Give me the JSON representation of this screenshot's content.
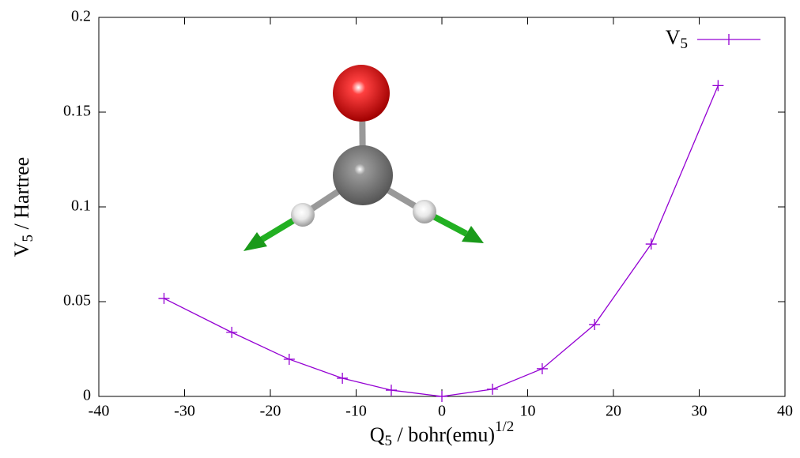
{
  "chart_data": {
    "type": "line",
    "xlabel": {
      "text": "Q",
      "sub": "5",
      "suffix": " / bohr(emu)",
      "sup": "1/2"
    },
    "ylabel": {
      "text": "V",
      "sub": "5",
      "suffix": " / Hartree"
    },
    "x": [
      -32.4,
      -24.5,
      -17.8,
      -11.6,
      -5.9,
      0,
      5.9,
      11.7,
      17.8,
      24.4,
      32.2
    ],
    "series": [
      {
        "name": "V",
        "name_sub": "5",
        "color": "#9400d3",
        "values": [
          0.0517,
          0.0338,
          0.0196,
          0.0096,
          0.0033,
          0,
          0.0038,
          0.0146,
          0.0379,
          0.0804,
          0.164
        ]
      }
    ],
    "xlim": [
      -40,
      40
    ],
    "xticks": [
      -40,
      -30,
      -20,
      -10,
      0,
      10,
      20,
      30,
      40
    ],
    "ylim": [
      0,
      0.2
    ],
    "yticks": [
      0,
      0.05,
      0.1,
      0.15,
      0.2
    ],
    "grid": false,
    "legend": "top-right"
  }
}
